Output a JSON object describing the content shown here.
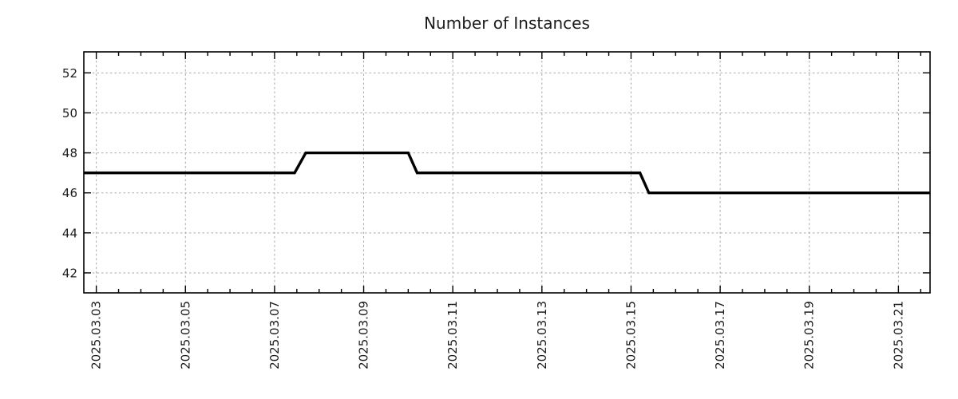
{
  "title": "Number of Instances",
  "colors": {
    "line": "#000000",
    "grid": "#a9a9a9",
    "axis": "#000000",
    "text": "#1c1c1c"
  },
  "chart_data": {
    "type": "line",
    "title": "Number of Instances",
    "xlabel": "",
    "ylabel": "",
    "legend": "none",
    "grid": true,
    "x_unit": "day of March 2025 (fractional days)",
    "xlim": [
      2.72,
      21.71
    ],
    "ylim": [
      41.0,
      53.05
    ],
    "y_ticks": [
      42,
      44,
      46,
      48,
      50,
      52
    ],
    "x_major_ticks": {
      "days": [
        3,
        5,
        7,
        9,
        11,
        13,
        15,
        17,
        19,
        21
      ],
      "labels": [
        "2025.03.03",
        "2025.03.05",
        "2025.03.07",
        "2025.03.09",
        "2025.03.11",
        "2025.03.13",
        "2025.03.15",
        "2025.03.17",
        "2025.03.19",
        "2025.03.21"
      ]
    },
    "x_minor_step_days": 0.5,
    "series": [
      {
        "name": "instances",
        "x": [
          2.72,
          7.45,
          7.7,
          10.0,
          10.2,
          15.2,
          15.4,
          21.71
        ],
        "y": [
          47,
          47,
          48,
          48,
          47,
          47,
          46,
          46
        ]
      }
    ]
  }
}
